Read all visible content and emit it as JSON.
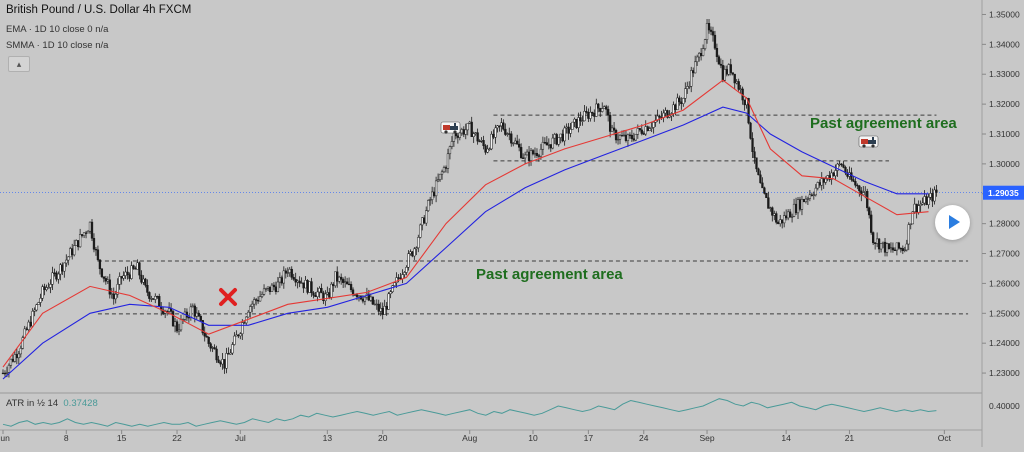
{
  "header": {
    "title": "British Pound / U.S. Dollar  4h  FXCM",
    "ema_label": "EMA · 1D 10 close 0  n/a",
    "smma_label": "SMMA · 1D 10 close  n/a",
    "collapse_icon": "chevron-up-icon"
  },
  "atr": {
    "label": "ATR in ½ 14",
    "value": "0.37428"
  },
  "annotations": {
    "upper_zone": "Past agreement area",
    "lower_zone": "Past agreement area",
    "cross_icon": "red-x-icon",
    "train_icon": "locomotive-icon"
  },
  "colors": {
    "background": "#c8c8c8",
    "ema": "#e53935",
    "smma": "#2323e0",
    "candles": "#1a1a1a",
    "atr": "#4a9a98",
    "annotation": "#1f6e1f",
    "price_badge": "#2962ff",
    "cross": "#e02020"
  },
  "chart_data": {
    "type": "candlestick",
    "title": "British Pound / U.S. Dollar  4h  FXCM",
    "ylim": [
      1.224,
      1.3535
    ],
    "y_ticks": [
      "1.35000",
      "1.34000",
      "1.33000",
      "1.32000",
      "1.31000",
      "1.30000",
      "1.29000",
      "1.28000",
      "1.27000",
      "1.26000",
      "1.25000",
      "1.24000",
      "1.23000"
    ],
    "current_price": "1.29035",
    "x_ticks": [
      "Jun",
      "8",
      "15",
      "22",
      "Jul",
      "13",
      "20",
      "Aug",
      "10",
      "17",
      "24",
      "Sep",
      "14",
      "21",
      "Oct"
    ],
    "price_path": [
      [
        0,
        1.23
      ],
      [
        2,
        1.238
      ],
      [
        5,
        1.257
      ],
      [
        8,
        1.268
      ],
      [
        11,
        1.28
      ],
      [
        12,
        1.267
      ],
      [
        14,
        1.255
      ],
      [
        15,
        1.262
      ],
      [
        17,
        1.265
      ],
      [
        18,
        1.258
      ],
      [
        21,
        1.25
      ],
      [
        22,
        1.245
      ],
      [
        24,
        1.252
      ],
      [
        26,
        1.24
      ],
      [
        28,
        1.233
      ],
      [
        30,
        1.245
      ],
      [
        31,
        1.252
      ],
      [
        33,
        1.257
      ],
      [
        35,
        1.26
      ],
      [
        36,
        1.265
      ],
      [
        38,
        1.26
      ],
      [
        39,
        1.258
      ],
      [
        41,
        1.255
      ],
      [
        42,
        1.262
      ],
      [
        44,
        1.258
      ],
      [
        46,
        1.255
      ],
      [
        48,
        1.25
      ],
      [
        50,
        1.262
      ],
      [
        52,
        1.272
      ],
      [
        54,
        1.288
      ],
      [
        56,
        1.3
      ],
      [
        57,
        1.31
      ],
      [
        59,
        1.312
      ],
      [
        61,
        1.305
      ],
      [
        63,
        1.313
      ],
      [
        64,
        1.31
      ],
      [
        66,
        1.302
      ],
      [
        68,
        1.305
      ],
      [
        71,
        1.31
      ],
      [
        73,
        1.315
      ],
      [
        76,
        1.32
      ],
      [
        77,
        1.31
      ],
      [
        79,
        1.308
      ],
      [
        81,
        1.312
      ],
      [
        83,
        1.315
      ],
      [
        86,
        1.322
      ],
      [
        87,
        1.33
      ],
      [
        88,
        1.336
      ],
      [
        89,
        1.345
      ],
      [
        90,
        1.34
      ],
      [
        91,
        1.33
      ],
      [
        92,
        1.332
      ],
      [
        94,
        1.32
      ],
      [
        95,
        1.3
      ],
      [
        96,
        1.29
      ],
      [
        98,
        1.28
      ],
      [
        100,
        1.285
      ],
      [
        102,
        1.29
      ],
      [
        104,
        1.295
      ],
      [
        106,
        1.3
      ],
      [
        107,
        1.295
      ],
      [
        109,
        1.29
      ],
      [
        110,
        1.275
      ],
      [
        112,
        1.271
      ],
      [
        114,
        1.272
      ],
      [
        115,
        1.285
      ],
      [
        117,
        1.288
      ],
      [
        118,
        1.2903
      ]
    ],
    "ema_path": [
      [
        0,
        1.232
      ],
      [
        5,
        1.25
      ],
      [
        11,
        1.259
      ],
      [
        16,
        1.256
      ],
      [
        21,
        1.25
      ],
      [
        26,
        1.243
      ],
      [
        31,
        1.248
      ],
      [
        36,
        1.253
      ],
      [
        41,
        1.255
      ],
      [
        46,
        1.257
      ],
      [
        51,
        1.262
      ],
      [
        56,
        1.28
      ],
      [
        61,
        1.293
      ],
      [
        66,
        1.3
      ],
      [
        71,
        1.305
      ],
      [
        76,
        1.309
      ],
      [
        81,
        1.313
      ],
      [
        86,
        1.318
      ],
      [
        91,
        1.328
      ],
      [
        94,
        1.322
      ],
      [
        97,
        1.305
      ],
      [
        101,
        1.296
      ],
      [
        105,
        1.295
      ],
      [
        109,
        1.289
      ],
      [
        113,
        1.283
      ],
      [
        117,
        1.284
      ]
    ],
    "smma_path": [
      [
        0,
        1.228
      ],
      [
        5,
        1.24
      ],
      [
        11,
        1.25
      ],
      [
        16,
        1.253
      ],
      [
        21,
        1.252
      ],
      [
        26,
        1.246
      ],
      [
        31,
        1.246
      ],
      [
        36,
        1.25
      ],
      [
        41,
        1.252
      ],
      [
        46,
        1.256
      ],
      [
        51,
        1.26
      ],
      [
        56,
        1.272
      ],
      [
        61,
        1.284
      ],
      [
        66,
        1.292
      ],
      [
        71,
        1.298
      ],
      [
        76,
        1.303
      ],
      [
        81,
        1.308
      ],
      [
        86,
        1.313
      ],
      [
        91,
        1.319
      ],
      [
        94,
        1.317
      ],
      [
        97,
        1.31
      ],
      [
        101,
        1.304
      ],
      [
        105,
        1.299
      ],
      [
        109,
        1.294
      ],
      [
        113,
        1.29
      ],
      [
        117,
        1.29
      ]
    ],
    "atr_series": [
      0.3,
      0.29,
      0.31,
      0.32,
      0.3,
      0.31,
      0.3,
      0.31,
      0.33,
      0.31,
      0.3,
      0.31,
      0.3,
      0.29,
      0.31,
      0.3,
      0.29,
      0.3,
      0.29,
      0.3,
      0.31,
      0.3,
      0.3,
      0.31,
      0.29,
      0.3,
      0.31,
      0.32,
      0.31,
      0.3,
      0.31,
      0.33,
      0.32,
      0.31,
      0.33,
      0.32,
      0.33,
      0.35,
      0.34,
      0.36,
      0.35,
      0.34,
      0.35,
      0.36,
      0.37,
      0.36,
      0.35,
      0.36,
      0.37,
      0.35,
      0.36,
      0.37,
      0.38,
      0.37,
      0.36,
      0.35,
      0.36,
      0.37,
      0.38,
      0.36,
      0.35,
      0.37,
      0.36,
      0.38,
      0.37,
      0.36,
      0.35,
      0.36,
      0.38,
      0.4,
      0.39,
      0.38,
      0.37,
      0.38,
      0.4,
      0.39,
      0.38,
      0.41,
      0.43,
      0.42,
      0.41,
      0.4,
      0.39,
      0.38,
      0.37,
      0.38,
      0.39,
      0.4,
      0.42,
      0.44,
      0.43,
      0.41,
      0.4,
      0.42,
      0.41,
      0.39,
      0.4,
      0.41,
      0.42,
      0.4,
      0.39,
      0.38,
      0.4,
      0.41,
      0.4,
      0.39,
      0.38,
      0.37,
      0.38,
      0.39,
      0.38,
      0.37,
      0.38,
      0.37,
      0.38,
      0.37,
      0.375
    ],
    "atr_ylim": [
      0.28,
      0.46
    ],
    "atr_ticks": [
      "0.40000"
    ],
    "levels": [
      {
        "value": 1.3163,
        "x_from": 62,
        "x_to": 118,
        "style": "dashed"
      },
      {
        "value": 1.301,
        "x_from": 62,
        "x_to": 112,
        "style": "dashed"
      },
      {
        "value": 1.2675,
        "x_from": 12,
        "x_to": 122,
        "style": "dashed"
      },
      {
        "value": 1.2498,
        "x_from": 12,
        "x_to": 122,
        "style": "dashed"
      }
    ]
  }
}
